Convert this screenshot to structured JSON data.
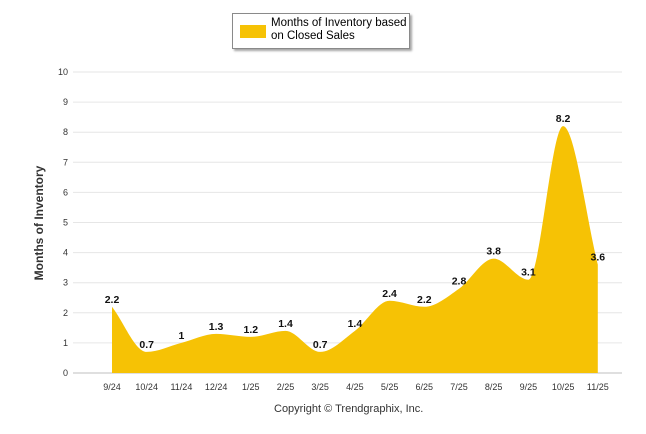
{
  "legend": {
    "label": "Months of Inventory based on Closed Sales",
    "color": "#f6c205"
  },
  "copyright": "Copyright © Trendgraphix, Inc.",
  "chart_data": {
    "type": "area",
    "title": "",
    "xlabel": "",
    "ylabel": "Months of Inventory",
    "ylim": [
      0,
      10
    ],
    "yticks": [
      "0",
      "1",
      "2",
      "3",
      "4",
      "5",
      "6",
      "7",
      "8",
      "9",
      "10"
    ],
    "grid": true,
    "legend_position": "top-center",
    "categories": [
      "9/24",
      "10/24",
      "11/24",
      "12/24",
      "1/25",
      "2/25",
      "3/25",
      "4/25",
      "5/25",
      "6/25",
      "7/25",
      "8/25",
      "9/25",
      "10/25",
      "11/25"
    ],
    "series": [
      {
        "name": "Months of Inventory based on Closed Sales",
        "values": [
          2.2,
          0.7,
          1,
          1.3,
          1.2,
          1.4,
          0.7,
          1.4,
          2.4,
          2.2,
          2.8,
          3.8,
          3.1,
          8.2,
          3.6
        ],
        "labels": [
          "2.2",
          "0.7",
          "1",
          "1.3",
          "1.2",
          "1.4",
          "0.7",
          "1.4",
          "2.4",
          "2.2",
          "2.8",
          "3.8",
          "3.1",
          "8.2",
          "3.6"
        ],
        "color": "#f6c205"
      }
    ]
  }
}
